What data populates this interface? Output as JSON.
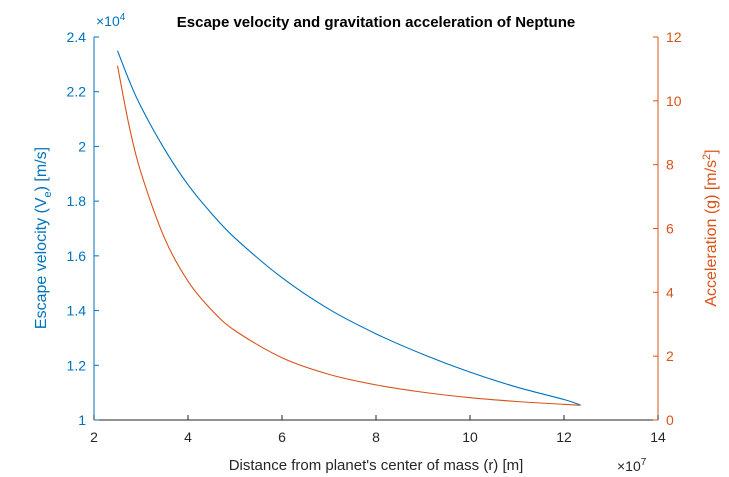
{
  "chart_data": {
    "type": "line",
    "title": "Escape velocity and gravitation acceleration of Neptune",
    "xlabel": "Distance from planet's center of mass (r) [m]",
    "x_exponent_label": "×10",
    "x_exponent": "7",
    "xlim": [
      2,
      14
    ],
    "xticks": [
      "2",
      "4",
      "6",
      "8",
      "10",
      "12",
      "14"
    ],
    "left_axis": {
      "label_main": "Escape velocity (V",
      "label_sub": "e",
      "label_tail": ") [m/s]",
      "color": "#0072BD",
      "exponent_label": "×10",
      "exponent": "4",
      "ylim": [
        1.0,
        2.4
      ],
      "yticks": [
        "1",
        "1.2",
        "1.4",
        "1.6",
        "1.8",
        "2",
        "2.2",
        "2.4"
      ]
    },
    "right_axis": {
      "label_main": "Acceleration (g) [m/s",
      "label_sup": "2",
      "label_tail": "]",
      "color": "#D95319",
      "ylim": [
        0,
        12
      ],
      "yticks": [
        "0",
        "2",
        "4",
        "6",
        "8",
        "10",
        "12"
      ]
    },
    "series": [
      {
        "axis": "left",
        "color": "#0072BD",
        "x": [
          2.5,
          2.75,
          3.0,
          3.5,
          4.0,
          4.5,
          5.0,
          6.0,
          7.0,
          8.0,
          9.0,
          10.0,
          11.0,
          12.0,
          12.35
        ],
        "y": [
          2.35,
          2.24,
          2.145,
          1.99,
          1.86,
          1.755,
          1.665,
          1.52,
          1.405,
          1.315,
          1.24,
          1.175,
          1.12,
          1.075,
          1.055
        ]
      },
      {
        "axis": "right",
        "color": "#D95319",
        "x": [
          2.5,
          2.75,
          3.0,
          3.5,
          4.0,
          4.5,
          5.0,
          6.0,
          7.0,
          8.0,
          9.0,
          10.0,
          11.0,
          12.0,
          12.35
        ],
        "y": [
          11.1,
          9.2,
          7.75,
          5.7,
          4.35,
          3.45,
          2.8,
          1.95,
          1.43,
          1.1,
          0.87,
          0.7,
          0.58,
          0.49,
          0.46
        ]
      }
    ]
  }
}
